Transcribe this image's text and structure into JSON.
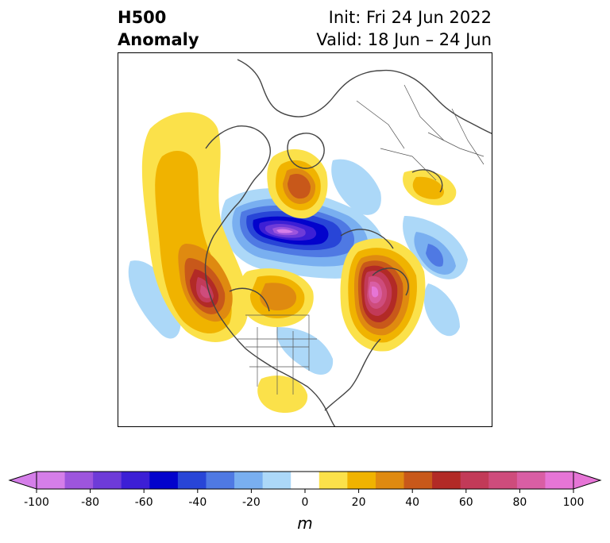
{
  "header": {
    "title_line1": "H500",
    "title_line2": "Anomaly",
    "init_text": "Init: Fri 24 Jun 2022",
    "valid_text": "Valid: 18 Jun – 24 Jun"
  },
  "colorbar": {
    "unit": "m",
    "tick_labels": [
      "-100",
      "-80",
      "-60",
      "-40",
      "-20",
      "0",
      "20",
      "40",
      "60",
      "80",
      "100"
    ],
    "levels": [
      -100,
      -90,
      -80,
      -70,
      -60,
      -50,
      -40,
      -30,
      -20,
      -10,
      10,
      20,
      30,
      40,
      50,
      60,
      70,
      80,
      90,
      100
    ],
    "colors": [
      "#d57ee9",
      "#9d55dd",
      "#6e3bd8",
      "#3c1fd5",
      "#0303cc",
      "#2845d7",
      "#4f79e3",
      "#79aff0",
      "#acd8f8",
      "#ffffff",
      "#fbe14a",
      "#f0b300",
      "#df8a10",
      "#c8581a",
      "#b22a26",
      "#c23a58",
      "#ce4c7c",
      "#d95ea4",
      "#e675d6"
    ],
    "extend_low_color": "#d57ee9",
    "extend_high_color": "#e675d6"
  },
  "map": {
    "projection": "north-polar-stereographic",
    "variable": "500 hPa geopotential height anomaly"
  }
}
